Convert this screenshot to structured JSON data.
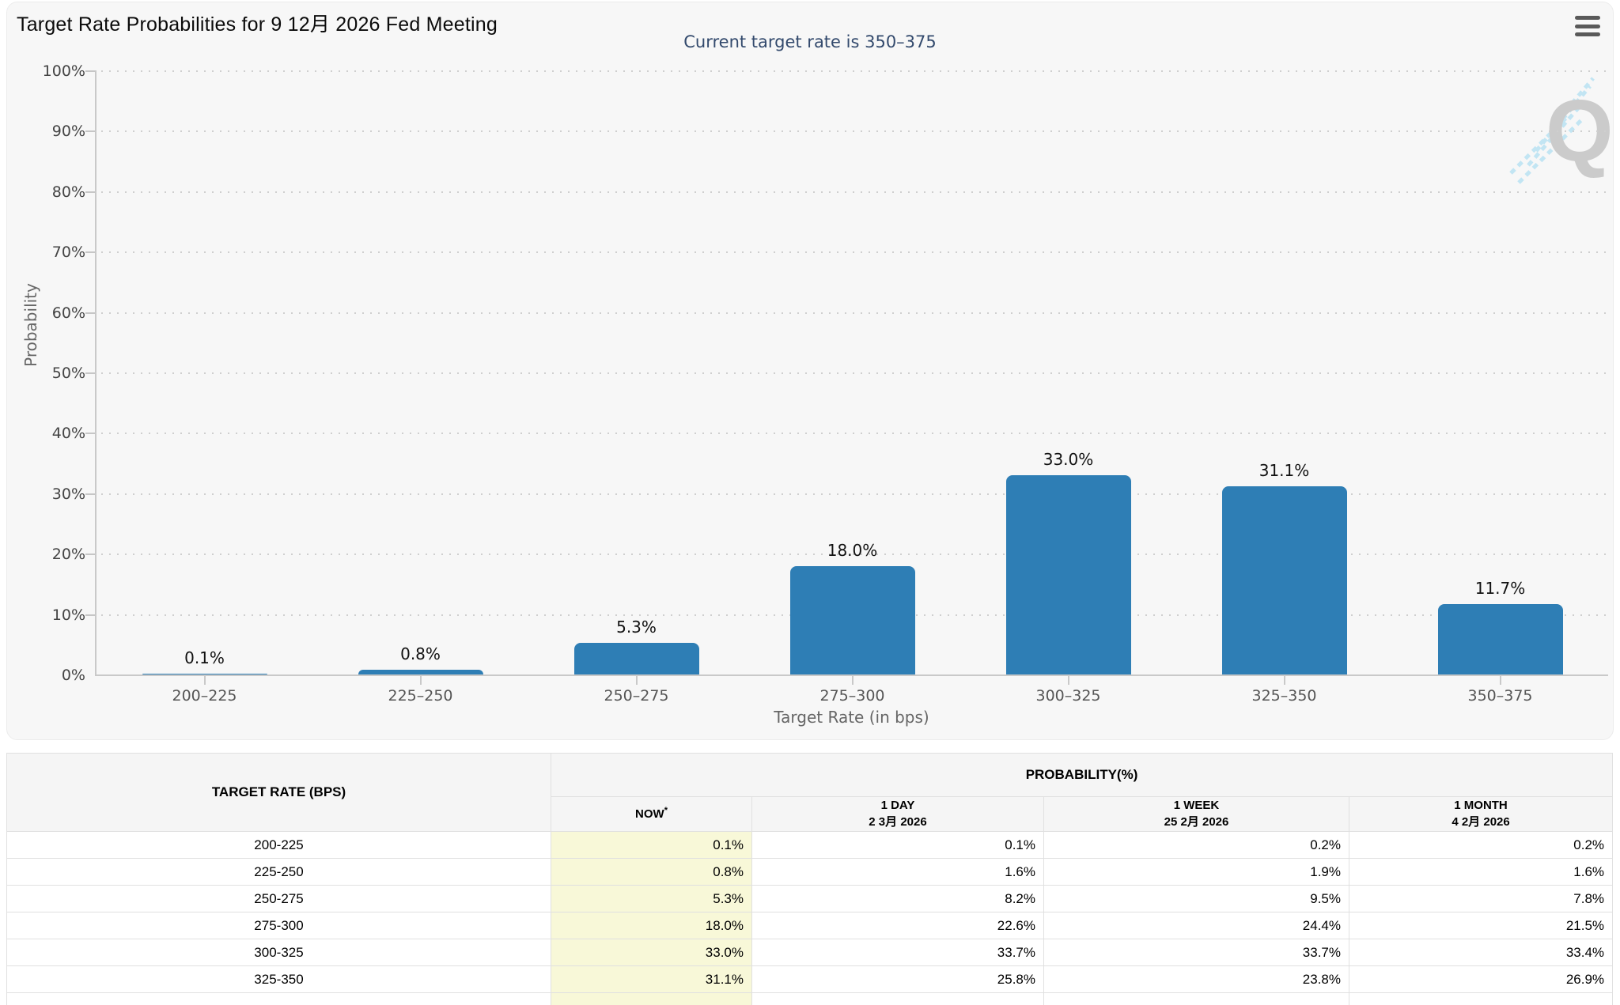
{
  "chart_data": {
    "type": "bar",
    "title": "Target Rate Probabilities for 9 12月 2026 Fed Meeting",
    "subtitle": "Current target rate is 350–375",
    "categories": [
      "200–225",
      "225–250",
      "250–275",
      "275–300",
      "300–325",
      "325–350",
      "350–375"
    ],
    "values": [
      0.1,
      0.8,
      5.3,
      18.0,
      33.0,
      31.1,
      11.7
    ],
    "value_labels": [
      "0.1%",
      "0.8%",
      "5.3%",
      "18.0%",
      "33.0%",
      "31.1%",
      "11.7%"
    ],
    "xlabel": "Target Rate (in bps)",
    "ylabel": "Probability",
    "ylim": [
      0,
      100
    ],
    "yticks": [
      "100%",
      "90%",
      "80%",
      "70%",
      "60%",
      "50%",
      "40%",
      "30%",
      "20%",
      "10%",
      "0%"
    ],
    "grid": "dotted-horizontal",
    "legend": "none",
    "bar_color": "#2e7eb5",
    "watermark_letter": "Q"
  },
  "icons": {
    "menu": "hamburger-menu-icon"
  },
  "table": {
    "col_headers": {
      "target_rate": "TARGET RATE (BPS)",
      "probability": "PROBABILITY(%)",
      "now": "NOW",
      "now_sup": "*",
      "day1_line1": "1 DAY",
      "day1_line2": "2 3月 2026",
      "week1_line1": "1 WEEK",
      "week1_line2": "25 2月 2026",
      "month1_line1": "1 MONTH",
      "month1_line2": "4 2月 2026"
    },
    "rows": [
      {
        "rate": "200-225",
        "now": "0.1%",
        "day": "0.1%",
        "week": "0.2%",
        "month": "0.2%"
      },
      {
        "rate": "225-250",
        "now": "0.8%",
        "day": "1.6%",
        "week": "1.9%",
        "month": "1.6%"
      },
      {
        "rate": "250-275",
        "now": "5.3%",
        "day": "8.2%",
        "week": "9.5%",
        "month": "7.8%"
      },
      {
        "rate": "275-300",
        "now": "18.0%",
        "day": "22.6%",
        "week": "24.4%",
        "month": "21.5%"
      },
      {
        "rate": "300-325",
        "now": "33.0%",
        "day": "33.7%",
        "week": "33.7%",
        "month": "33.4%"
      },
      {
        "rate": "325-350",
        "now": "31.1%",
        "day": "25.8%",
        "week": "23.8%",
        "month": "26.9%"
      }
    ]
  },
  "colors": {
    "bar": "#2e7eb5",
    "now_highlight": "#f8f8d8",
    "card_bg": "#f7f7f7",
    "subtitle_text": "#334a6d"
  }
}
